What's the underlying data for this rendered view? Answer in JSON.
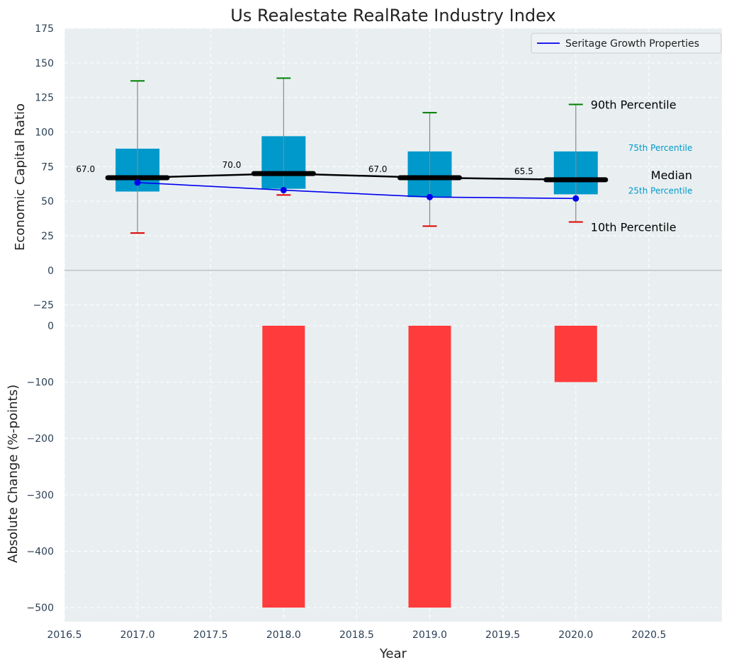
{
  "chart_data": [
    {
      "type": "box",
      "title": "Us Realestate RealRate Industry Index",
      "ylabel": "Economic Capital Ratio",
      "ylim": [
        -40,
        175
      ],
      "yticks": [
        -25,
        0,
        25,
        50,
        75,
        100,
        125,
        150,
        175
      ],
      "yticklabels": [
        "−25",
        "0",
        "25",
        "50",
        "75",
        "100",
        "125",
        "150",
        "175"
      ],
      "grid": true,
      "legend": {
        "placement": "top-right",
        "entries": [
          "Seritage Growth Properties"
        ]
      },
      "x": [
        2017,
        2018,
        2019,
        2020
      ],
      "p10": [
        27,
        54.5,
        32,
        35
      ],
      "p25": [
        57,
        59,
        53,
        55
      ],
      "median": [
        67.0,
        70.0,
        67.0,
        65.5
      ],
      "median_labels": [
        "67.0",
        "70.0",
        "67.0",
        "65.5"
      ],
      "p75": [
        88,
        97,
        86,
        86
      ],
      "p90": [
        137,
        139,
        114,
        120
      ],
      "series": [
        {
          "name": "Seritage Growth Properties",
          "values": [
            63.5,
            58,
            53,
            52
          ]
        }
      ],
      "annotations": {
        "p90": "90th Percentile",
        "p75": "75th Percentile",
        "median": "Median",
        "p25": "25th Percentile",
        "p10": "10th Percentile"
      }
    },
    {
      "type": "bar",
      "ylabel": "Absolute Change (%-points)",
      "xlabel": "Year",
      "ylim": [
        -525,
        0
      ],
      "yticks": [
        -500,
        -400,
        -300,
        -200,
        -100,
        0
      ],
      "yticklabels": [
        "−500",
        "−400",
        "−300",
        "−200",
        "−100",
        "0"
      ],
      "xlim": [
        2016.5,
        2021
      ],
      "xticks": [
        2016.5,
        2017.0,
        2017.5,
        2018.0,
        2018.5,
        2019.0,
        2019.5,
        2020.0,
        2020.5
      ],
      "xticklabels": [
        "2016.5",
        "2017.0",
        "2017.5",
        "2018.0",
        "2018.5",
        "2019.0",
        "2019.5",
        "2020.0",
        "2020.5"
      ],
      "x": [
        2018,
        2019,
        2020
      ],
      "values": [
        -500,
        -500,
        -100
      ],
      "grid": true
    }
  ],
  "colors": {
    "plot_bg": "#e9eff1",
    "grid": "#ffffff",
    "box": "#0099cc",
    "whisker": "#888888",
    "p90_cap": "#008000",
    "p10_cap": "#dd0000",
    "median": "#000000",
    "series": "#0000ee",
    "bar": "#ff3b3b",
    "p75_text": "#0099cc",
    "p25_text": "#0099cc",
    "tick": "#2b3f55"
  }
}
